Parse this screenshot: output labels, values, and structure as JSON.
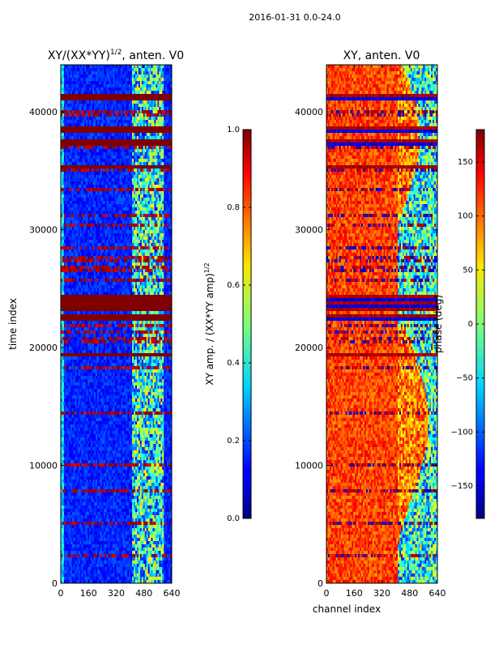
{
  "figure": {
    "suptitle": "2016-01-31 0.0-24.0",
    "xlabel_shared": "channel index"
  },
  "chart_data": [
    {
      "type": "heatmap",
      "title": "XY/(XX*YY)",
      "title_power": "1/2",
      "title_suffix": ", anten. V0",
      "xlabel": "",
      "ylabel": "time index",
      "xlim": [
        0,
        640
      ],
      "ylim": [
        0,
        44000
      ],
      "xticks": [
        0,
        160,
        320,
        480,
        640
      ],
      "yticks": [
        0,
        10000,
        20000,
        30000,
        40000
      ],
      "colorbar": {
        "label": "XY amp. / (XX*YY amp)",
        "label_power": "1/2",
        "range": [
          0.0,
          1.0
        ],
        "ticks": [
          0.0,
          0.2,
          0.4,
          0.6,
          0.8,
          1.0
        ],
        "tick_labels": [
          "0.0",
          "0.2",
          "0.4",
          "0.6",
          "0.8",
          "1.0"
        ],
        "colormap": "jet"
      }
    },
    {
      "type": "heatmap",
      "title": "XY, anten. V0",
      "xlabel": "channel index",
      "ylabel": "",
      "xlim": [
        0,
        640
      ],
      "ylim": [
        0,
        44000
      ],
      "xticks": [
        0,
        160,
        320,
        480,
        640
      ],
      "yticks": [
        0,
        10000,
        20000,
        30000,
        40000
      ],
      "colorbar": {
        "label": "phase (deg)",
        "range": [
          -180,
          180
        ],
        "ticks": [
          -150,
          -100,
          -50,
          0,
          50,
          100,
          150
        ],
        "tick_labels": [
          "−150",
          "−100",
          "−50",
          "0",
          "50",
          "100",
          "150"
        ],
        "colormap": "jet"
      }
    }
  ]
}
